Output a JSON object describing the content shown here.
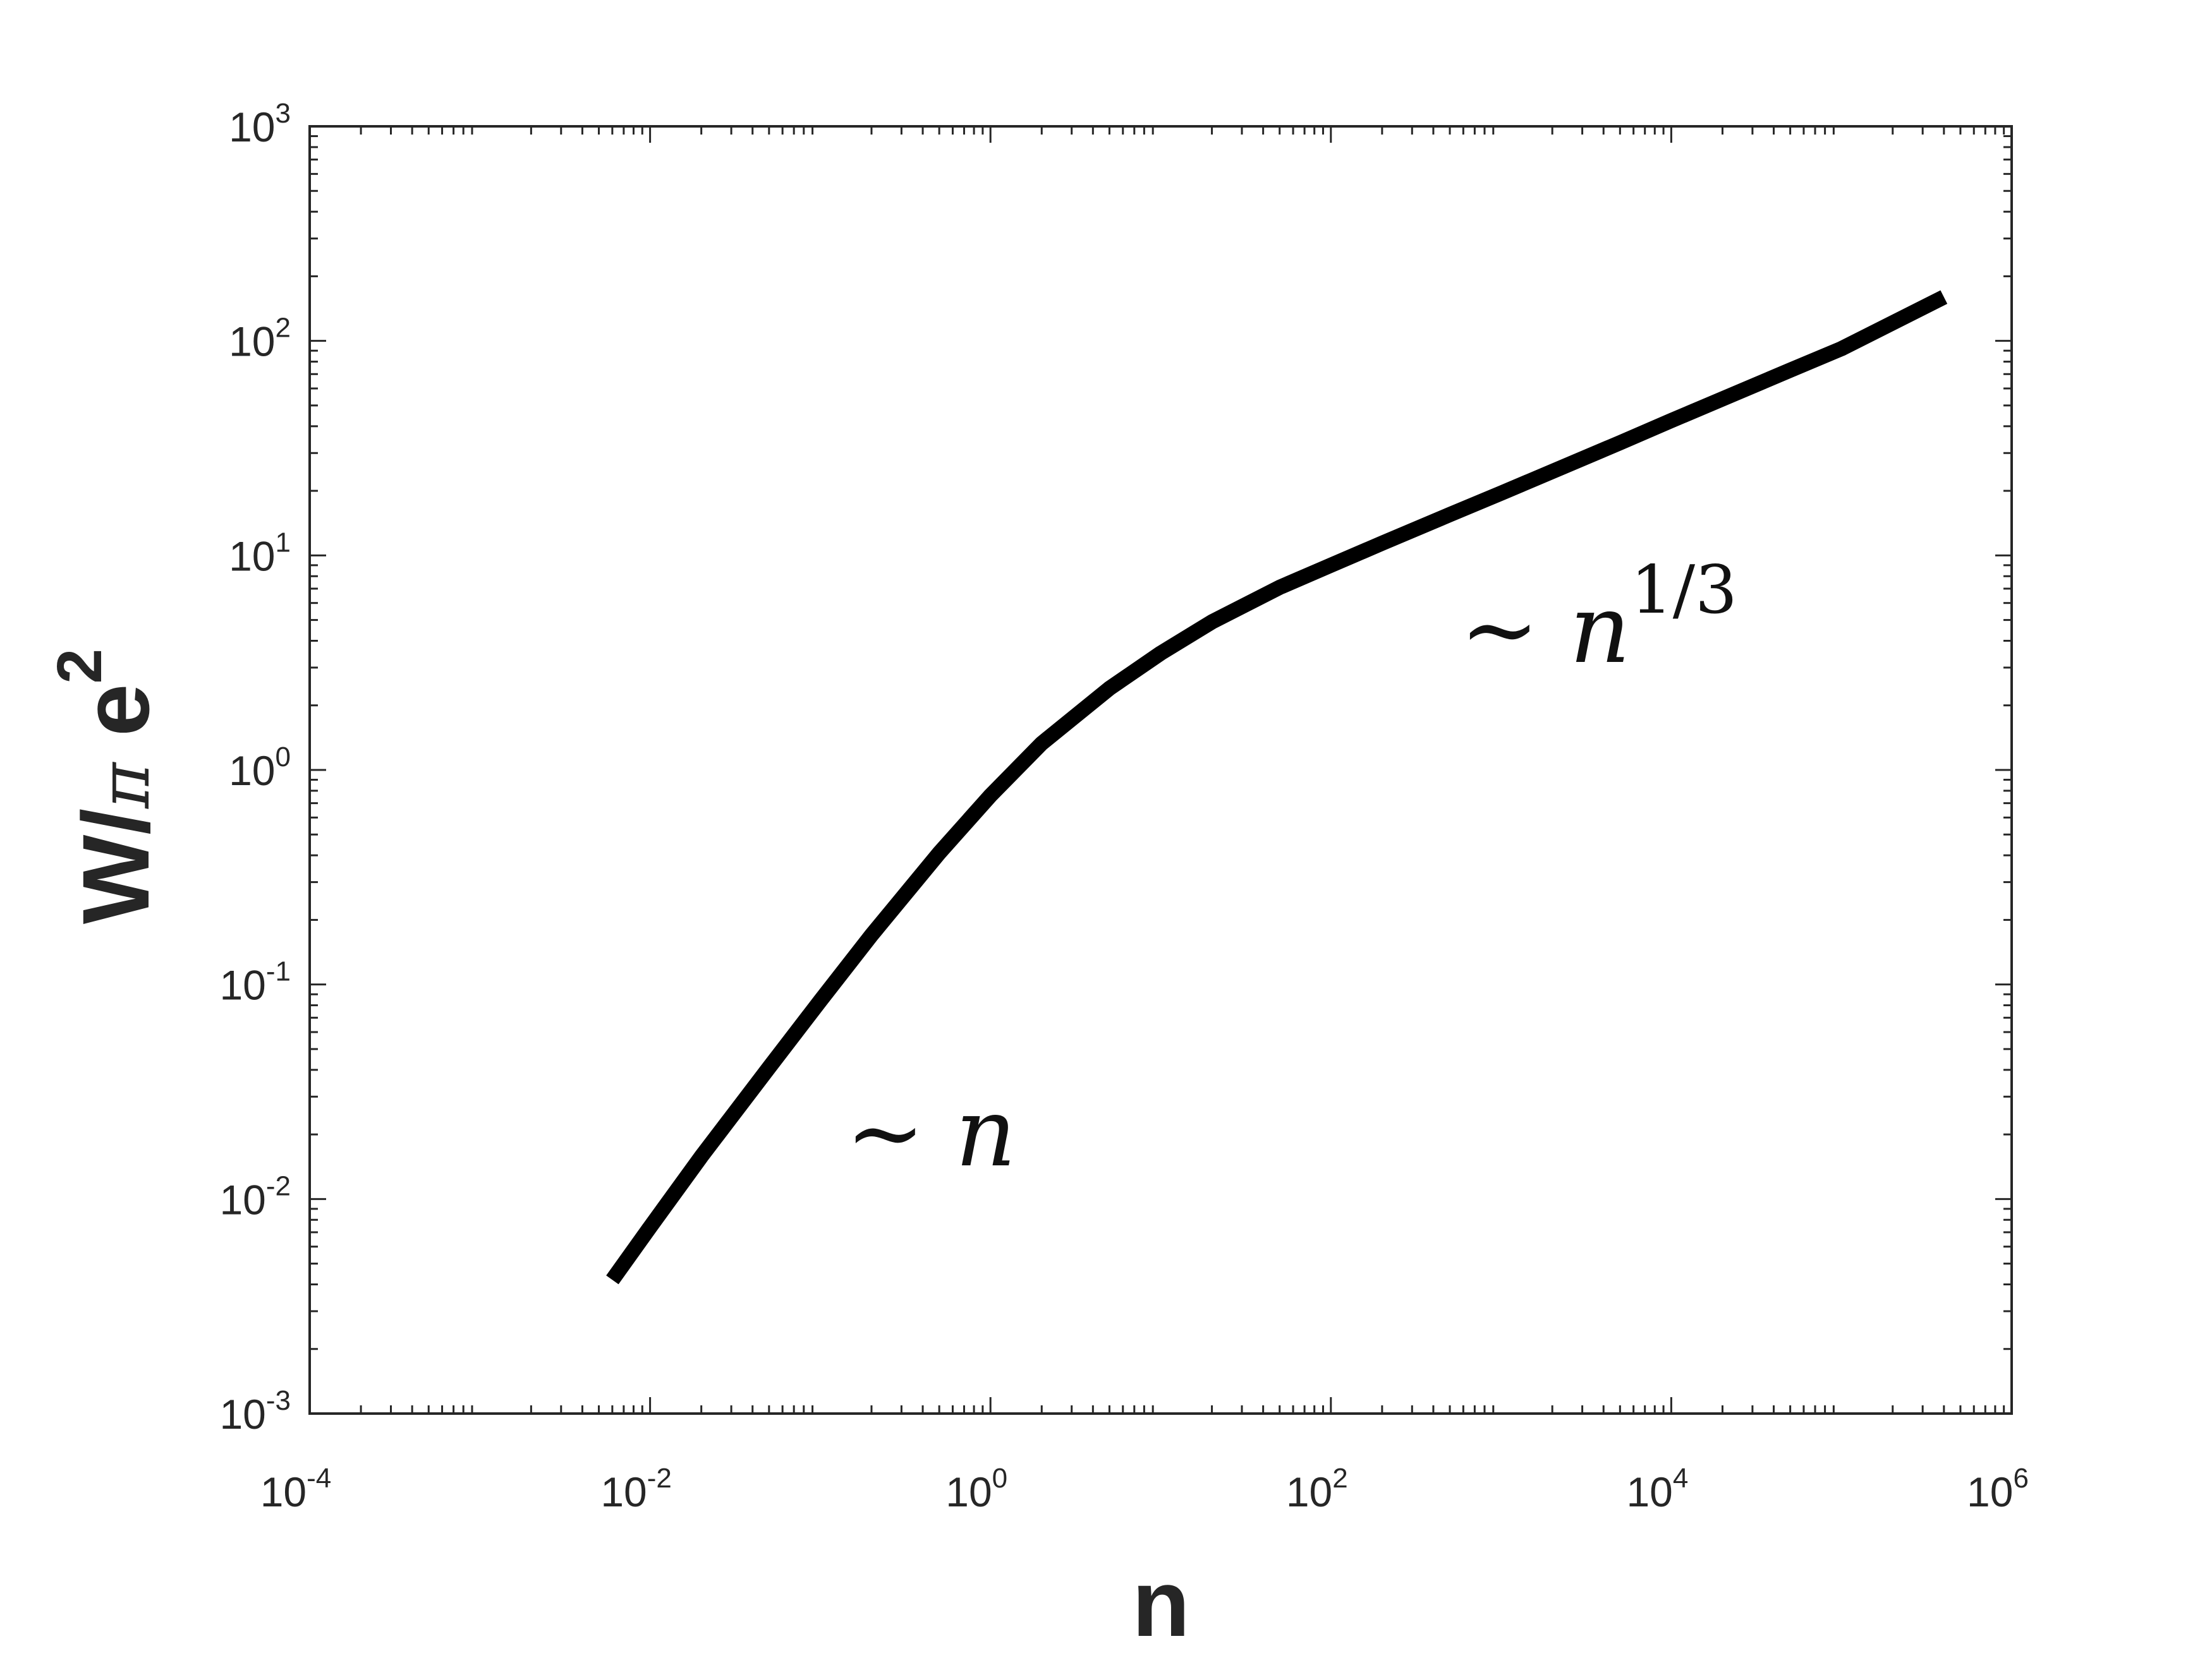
{
  "chart_data": {
    "type": "line",
    "title": "",
    "xlabel": "n",
    "ylabel_main": "W/",
    "ylabel_pi": "π",
    "ylabel_e": " e",
    "ylabel_sup": "2",
    "x_scale": "log",
    "y_scale": "log",
    "xlim": [
      0.0001,
      1000000
    ],
    "ylim": [
      0.001,
      1000
    ],
    "grid": false,
    "x_ticks": [
      {
        "base": "10",
        "exp": "-4",
        "value": 0.0001
      },
      {
        "base": "10",
        "exp": "-2",
        "value": 0.01
      },
      {
        "base": "10",
        "exp": "0",
        "value": 1
      },
      {
        "base": "10",
        "exp": "2",
        "value": 100
      },
      {
        "base": "10",
        "exp": "4",
        "value": 10000
      },
      {
        "base": "10",
        "exp": "6",
        "value": 1000000
      }
    ],
    "y_ticks": [
      {
        "base": "10",
        "exp": "-3",
        "value": 0.001
      },
      {
        "base": "10",
        "exp": "-2",
        "value": 0.01
      },
      {
        "base": "10",
        "exp": "-1",
        "value": 0.1
      },
      {
        "base": "10",
        "exp": "0",
        "value": 1
      },
      {
        "base": "10",
        "exp": "1",
        "value": 10
      },
      {
        "base": "10",
        "exp": "2",
        "value": 100
      },
      {
        "base": "10",
        "exp": "3",
        "value": 1000
      }
    ],
    "series": [
      {
        "color": "#000000",
        "x": [
          0.006,
          0.01,
          0.02,
          0.05,
          0.1,
          0.2,
          0.5,
          1,
          2,
          5,
          10,
          20,
          50,
          100,
          200,
          500,
          1000,
          5000,
          10000,
          50000,
          100000,
          400000
        ],
        "y": [
          0.0042,
          0.0074,
          0.0158,
          0.041,
          0.084,
          0.17,
          0.41,
          0.76,
          1.33,
          2.4,
          3.5,
          4.9,
          7.1,
          9.0,
          11.4,
          15.5,
          19.5,
          33.5,
          42.5,
          73,
          92,
          160
        ]
      }
    ],
    "annotations": [
      {
        "prefix": "∼ ",
        "var": "n",
        "sup": ""
      },
      {
        "prefix": "∼ ",
        "var": "n",
        "sup": "1/3"
      }
    ]
  }
}
